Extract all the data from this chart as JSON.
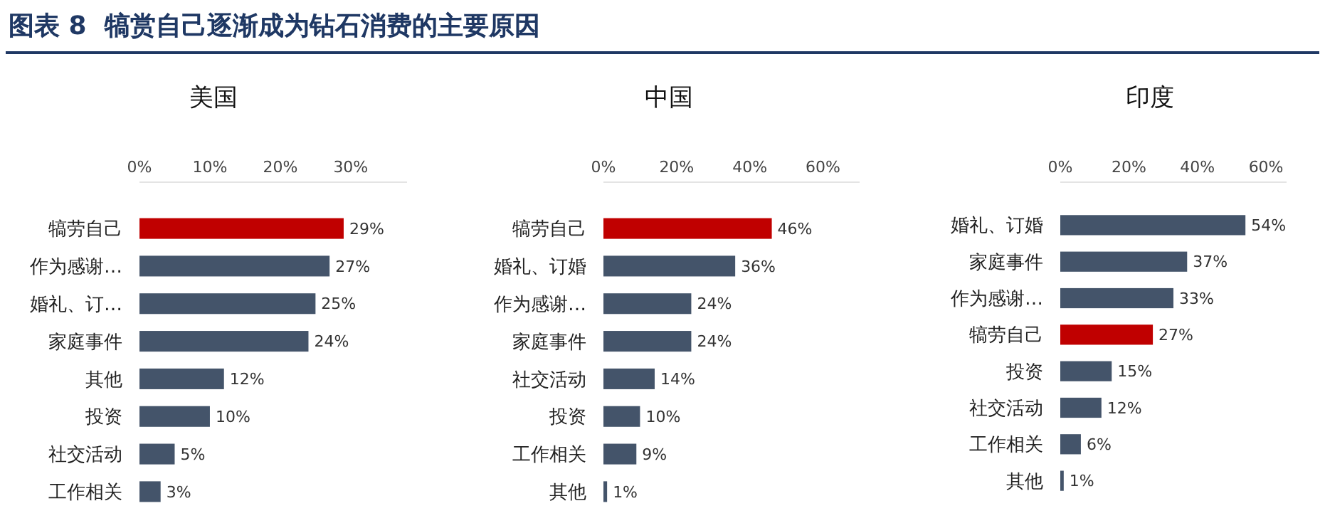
{
  "chart_data": [
    {
      "type": "bar",
      "orientation": "horizontal",
      "title": "美国",
      "annotations": [
        "图表 8  犒赏自己逐渐成为钻石消费的主要原因"
      ],
      "categories": [
        "犒劳自己",
        "作为感谢…",
        "婚礼、订…",
        "家庭事件",
        "其他",
        "投资",
        "社交活动",
        "工作相关"
      ],
      "values": [
        29,
        27,
        25,
        24,
        12,
        10,
        5,
        3
      ],
      "value_labels": [
        "29%",
        "27%",
        "25%",
        "24%",
        "12%",
        "10%",
        "5%",
        "3%"
      ],
      "colors": [
        "#c00000",
        "#44546a",
        "#44546a",
        "#44546a",
        "#44546a",
        "#44546a",
        "#44546a",
        "#44546a"
      ],
      "xlim": [
        0,
        38
      ],
      "xticks": [
        {
          "value": 0,
          "label": "0%"
        },
        {
          "value": 10,
          "label": "10%"
        },
        {
          "value": 20,
          "label": "20%"
        },
        {
          "value": 30,
          "label": "30%"
        }
      ],
      "grid": false
    },
    {
      "type": "bar",
      "orientation": "horizontal",
      "title": "中国",
      "categories": [
        "犒劳自己",
        "婚礼、订婚",
        "作为感谢…",
        "家庭事件",
        "社交活动",
        "投资",
        "工作相关",
        "其他"
      ],
      "values": [
        46,
        36,
        24,
        24,
        14,
        10,
        9,
        1
      ],
      "value_labels": [
        "46%",
        "36%",
        "24%",
        "24%",
        "14%",
        "10%",
        "9%",
        "1%"
      ],
      "colors": [
        "#c00000",
        "#44546a",
        "#44546a",
        "#44546a",
        "#44546a",
        "#44546a",
        "#44546a",
        "#44546a"
      ],
      "xlim": [
        0,
        70
      ],
      "xticks": [
        {
          "value": 0,
          "label": "0%"
        },
        {
          "value": 20,
          "label": "20%"
        },
        {
          "value": 40,
          "label": "40%"
        },
        {
          "value": 60,
          "label": "60%"
        }
      ],
      "grid": false
    },
    {
      "type": "bar",
      "orientation": "horizontal",
      "title": "印度",
      "categories": [
        "婚礼、订婚",
        "家庭事件",
        "作为感谢…",
        "犒劳自己",
        "投资",
        "社交活动",
        "工作相关",
        "其他"
      ],
      "values": [
        54,
        37,
        33,
        27,
        15,
        12,
        6,
        1
      ],
      "value_labels": [
        "54%",
        "37%",
        "33%",
        "27%",
        "15%",
        "12%",
        "6%",
        "1%"
      ],
      "colors": [
        "#44546a",
        "#44546a",
        "#44546a",
        "#c00000",
        "#44546a",
        "#44546a",
        "#44546a",
        "#44546a"
      ],
      "xlim": [
        0,
        66
      ],
      "xticks": [
        {
          "value": 0,
          "label": "0%"
        },
        {
          "value": 20,
          "label": "20%"
        },
        {
          "value": 40,
          "label": "40%"
        },
        {
          "value": 60,
          "label": "60%"
        }
      ],
      "grid": false
    }
  ]
}
